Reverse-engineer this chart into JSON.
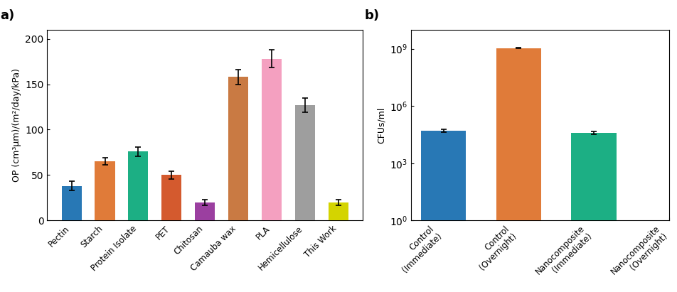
{
  "panel_a": {
    "categories": [
      "Pectin",
      "Starch",
      "Protein Isolate",
      "PET",
      "Chitosan",
      "Camauba wax",
      "PLA",
      "Hemicellulose",
      "This Work"
    ],
    "values": [
      38,
      65,
      76,
      50,
      20,
      158,
      178,
      127,
      20
    ],
    "errors": [
      5,
      4,
      5,
      4,
      3,
      8,
      10,
      8,
      3
    ],
    "colors": [
      "#2878b5",
      "#e07b39",
      "#1caf84",
      "#d45a2e",
      "#9b3fa0",
      "#c97a43",
      "#f4a0c0",
      "#9e9e9e",
      "#d4d400"
    ],
    "ylabel": "OP (cm³μm)/(m²/day/kPa)",
    "ylim": [
      0,
      210
    ],
    "yticks": [
      0,
      50,
      100,
      150,
      200
    ],
    "label": "a)"
  },
  "panel_b": {
    "categories": [
      "Control\n(Immediate)",
      "Control\n(Overnight)",
      "Nanocomposite\n(Immediate)",
      "Nanocomposite\n(Overnight)"
    ],
    "values": [
      50000.0,
      1100000000.0,
      40000.0,
      0
    ],
    "errors_abs": [
      8000,
      40000000.0,
      6000,
      0
    ],
    "colors": [
      "#2878b5",
      "#e07b39",
      "#1caf84",
      "#ffffff"
    ],
    "ylabel": "CFUs/ml",
    "ylim_log": [
      1.0,
      10000000000.0
    ],
    "yticks_log": [
      1.0,
      1000.0,
      1000000.0,
      1000000000.0
    ],
    "ytick_labels": [
      "10⁰",
      "10³",
      "10⁶",
      "10⁹"
    ],
    "label": "b)"
  }
}
